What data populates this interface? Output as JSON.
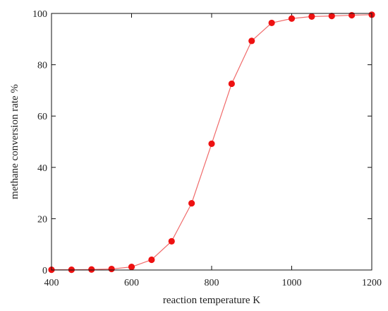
{
  "chart_data": {
    "type": "line",
    "title": "",
    "xlabel": "reaction temperature K",
    "ylabel": "methane conversion rate %",
    "xlim": [
      400,
      1200
    ],
    "ylim": [
      0,
      100
    ],
    "xticks": [
      400,
      600,
      800,
      1000,
      1200
    ],
    "yticks": [
      0,
      20,
      40,
      60,
      80,
      100
    ],
    "grid": false,
    "legend": "none",
    "series": [
      {
        "color": "#ee1111",
        "marker": "circle",
        "x": [
          400,
          450,
          500,
          550,
          600,
          650,
          700,
          750,
          800,
          850,
          900,
          950,
          1000,
          1050,
          1100,
          1150,
          1200
        ],
        "y": [
          0.1,
          0.1,
          0.2,
          0.4,
          1.2,
          4.0,
          11.2,
          26.0,
          49.2,
          72.6,
          89.3,
          96.3,
          98.0,
          98.8,
          99.0,
          99.3,
          99.5
        ]
      }
    ]
  }
}
